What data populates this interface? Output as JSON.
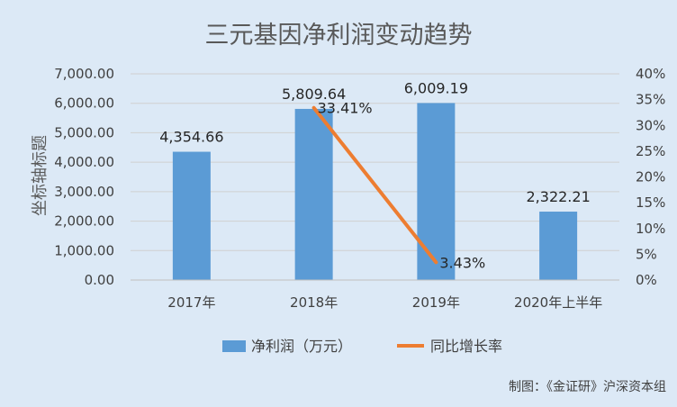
{
  "chart_data": {
    "type": "bar",
    "title": "三元基因净利润变动趋势",
    "ylabel": "坐标轴标题",
    "categories": [
      "2017年",
      "2018年",
      "2019年",
      "2020年上半年"
    ],
    "series": [
      {
        "name": "净利润（万元）",
        "type": "bar",
        "axis": "left",
        "color": "#5b9bd5",
        "values": [
          4354.66,
          5809.64,
          6009.19,
          2322.21
        ],
        "labels": [
          "4,354.66",
          "5,809.64",
          "6,009.19",
          "2,322.21"
        ]
      },
      {
        "name": "同比增长率",
        "type": "line",
        "axis": "right",
        "color": "#ed7d31",
        "values": [
          null,
          33.41,
          3.43,
          null
        ],
        "labels": [
          null,
          "33.41%",
          "3.43%",
          null
        ]
      }
    ],
    "y_left": {
      "ylim": [
        0,
        7000
      ],
      "ticks": [
        0,
        1000,
        2000,
        3000,
        4000,
        5000,
        6000,
        7000
      ],
      "tick_labels": [
        "0.00",
        "1,000.00",
        "2,000.00",
        "3,000.00",
        "4,000.00",
        "5,000.00",
        "6,000.00",
        "7,000.00"
      ]
    },
    "y_right": {
      "ylim": [
        0,
        40
      ],
      "ticks": [
        0,
        5,
        10,
        15,
        20,
        25,
        30,
        35,
        40
      ],
      "tick_labels": [
        "0%",
        "5%",
        "10%",
        "15%",
        "20%",
        "25%",
        "30%",
        "35%",
        "40%"
      ]
    },
    "grid": true,
    "legend_position": "bottom"
  },
  "credit": "制图：《金证研》沪深资本组"
}
